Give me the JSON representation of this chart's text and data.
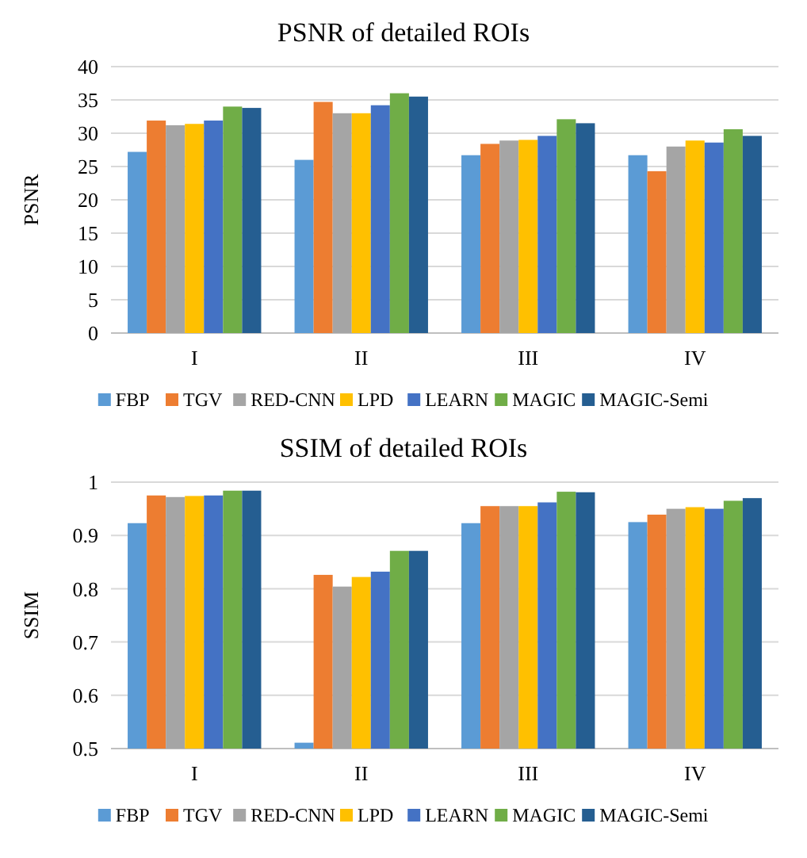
{
  "chart_data": [
    {
      "type": "bar",
      "title": "PSNR of detailed ROIs",
      "ylabel": "PSNR",
      "categories": [
        "I",
        "II",
        "III",
        "IV"
      ],
      "ylim": [
        0,
        40
      ],
      "yticks": [
        0,
        5,
        10,
        15,
        20,
        25,
        30,
        35,
        40
      ],
      "grid": "y",
      "legend": "bottom",
      "series": [
        {
          "name": "FBP",
          "color": "#5b9bd5",
          "values": [
            27.2,
            26,
            26.7,
            26.7
          ]
        },
        {
          "name": "TGV",
          "color": "#ed7d31",
          "values": [
            31.9,
            34.7,
            28.4,
            24.3
          ]
        },
        {
          "name": "RED-CNN",
          "color": "#a5a5a5",
          "values": [
            31.2,
            33,
            28.9,
            28
          ]
        },
        {
          "name": "LPD",
          "color": "#ffc000",
          "values": [
            31.4,
            33,
            29,
            28.9
          ]
        },
        {
          "name": "LEARN",
          "color": "#4472c4",
          "values": [
            31.9,
            34.2,
            29.6,
            28.6
          ]
        },
        {
          "name": "MAGIC",
          "color": "#70ad47",
          "values": [
            34,
            36,
            32.1,
            30.6
          ]
        },
        {
          "name": "MAGIC-Semi",
          "color": "#255e91",
          "values": [
            33.8,
            35.5,
            31.5,
            29.6
          ]
        }
      ]
    },
    {
      "type": "bar",
      "title": "SSIM of detailed ROIs",
      "ylabel": "SSIM",
      "categories": [
        "I",
        "II",
        "III",
        "IV"
      ],
      "ylim": [
        0.5,
        1
      ],
      "yticks": [
        0.5,
        0.6,
        0.7,
        0.8,
        0.9,
        1
      ],
      "grid": "y",
      "legend": "bottom",
      "series": [
        {
          "name": "FBP",
          "color": "#5b9bd5",
          "values": [
            0.923,
            0.511,
            0.923,
            0.925
          ]
        },
        {
          "name": "TGV",
          "color": "#ed7d31",
          "values": [
            0.975,
            0.826,
            0.955,
            0.939
          ]
        },
        {
          "name": "RED-CNN",
          "color": "#a5a5a5",
          "values": [
            0.972,
            0.804,
            0.955,
            0.95
          ]
        },
        {
          "name": "LPD",
          "color": "#ffc000",
          "values": [
            0.974,
            0.822,
            0.955,
            0.953
          ]
        },
        {
          "name": "LEARN",
          "color": "#4472c4",
          "values": [
            0.975,
            0.832,
            0.962,
            0.95
          ]
        },
        {
          "name": "MAGIC",
          "color": "#70ad47",
          "values": [
            0.984,
            0.871,
            0.982,
            0.965
          ]
        },
        {
          "name": "MAGIC-Semi",
          "color": "#255e91",
          "values": [
            0.984,
            0.871,
            0.981,
            0.97
          ]
        }
      ]
    }
  ]
}
